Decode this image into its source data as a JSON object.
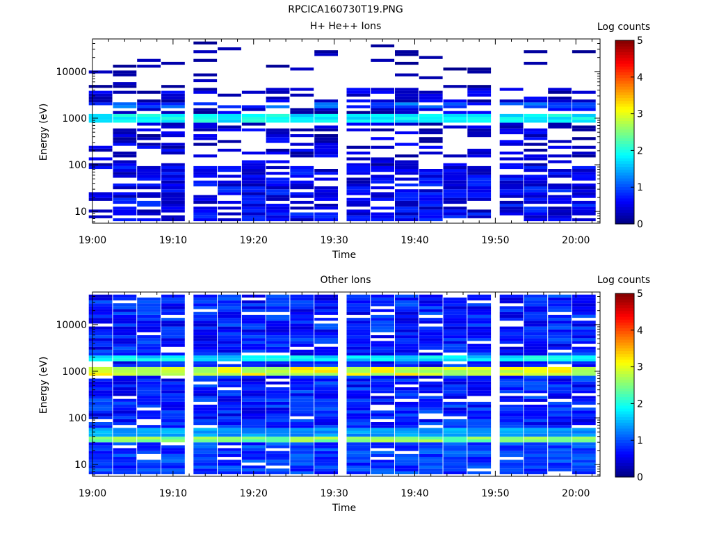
{
  "figure_title": "RPCICA160730T19.PNG",
  "chart_data": [
    {
      "type": "heatmap",
      "title": "H+ He++ Ions",
      "xlabel": "Time",
      "ylabel": "Energy (eV)",
      "colorbar_label": "Log counts",
      "y_scale": "log",
      "ylim": [
        5.6,
        50000
      ],
      "y_ticks": [
        10,
        100,
        1000,
        10000
      ],
      "y_tick_labels": [
        "10",
        "100",
        "1000",
        "10000"
      ],
      "xlim": [
        "19:00",
        "20:03"
      ],
      "x_ticks": [
        "19:00",
        "19:10",
        "19:20",
        "19:30",
        "19:40",
        "19:50",
        "20:00"
      ],
      "time_bins": [
        "19:01",
        "19:04",
        "19:07",
        "19:10",
        "19:14",
        "19:17",
        "19:20",
        "19:23",
        "19:26",
        "19:29",
        "19:33",
        "19:36",
        "19:39",
        "19:42",
        "19:45",
        "19:48",
        "19:52",
        "19:55",
        "19:58",
        "20:01"
      ],
      "colorbar_range": [
        0,
        5
      ],
      "colorbar_ticks": [
        0,
        1,
        2,
        3,
        4,
        5
      ],
      "bands": [
        {
          "energy_ev": [
            850,
            1200
          ],
          "log_counts": 1.8
        },
        {
          "energy_ev": [
            1600,
            2200
          ],
          "log_counts": 1.2
        },
        {
          "energy_ev": [
            6,
            100
          ],
          "log_counts": 0.6
        }
      ],
      "grid": false
    },
    {
      "type": "heatmap",
      "title": "Other Ions",
      "xlabel": "Time",
      "ylabel": "Energy (eV)",
      "colorbar_label": "Log counts",
      "y_scale": "log",
      "ylim": [
        5.6,
        50000
      ],
      "y_ticks": [
        10,
        100,
        1000,
        10000
      ],
      "y_tick_labels": [
        "10",
        "100",
        "1000",
        "10000"
      ],
      "xlim": [
        "19:00",
        "20:03"
      ],
      "x_ticks": [
        "19:00",
        "19:10",
        "19:20",
        "19:30",
        "19:40",
        "19:50",
        "20:00"
      ],
      "time_bins": [
        "19:01",
        "19:04",
        "19:07",
        "19:10",
        "19:14",
        "19:17",
        "19:20",
        "19:23",
        "19:26",
        "19:29",
        "19:33",
        "19:36",
        "19:39",
        "19:42",
        "19:45",
        "19:48",
        "19:52",
        "19:55",
        "19:58",
        "20:01"
      ],
      "colorbar_range": [
        0,
        5
      ],
      "colorbar_ticks": [
        0,
        1,
        2,
        3,
        4,
        5
      ],
      "bands": [
        {
          "energy_ev": [
            850,
            1200
          ],
          "log_counts": 3.1
        },
        {
          "energy_ev": [
            1700,
            2200
          ],
          "log_counts": 1.9
        },
        {
          "energy_ev": [
            30,
            40
          ],
          "log_counts": 2.6
        }
      ],
      "grid": false
    }
  ]
}
